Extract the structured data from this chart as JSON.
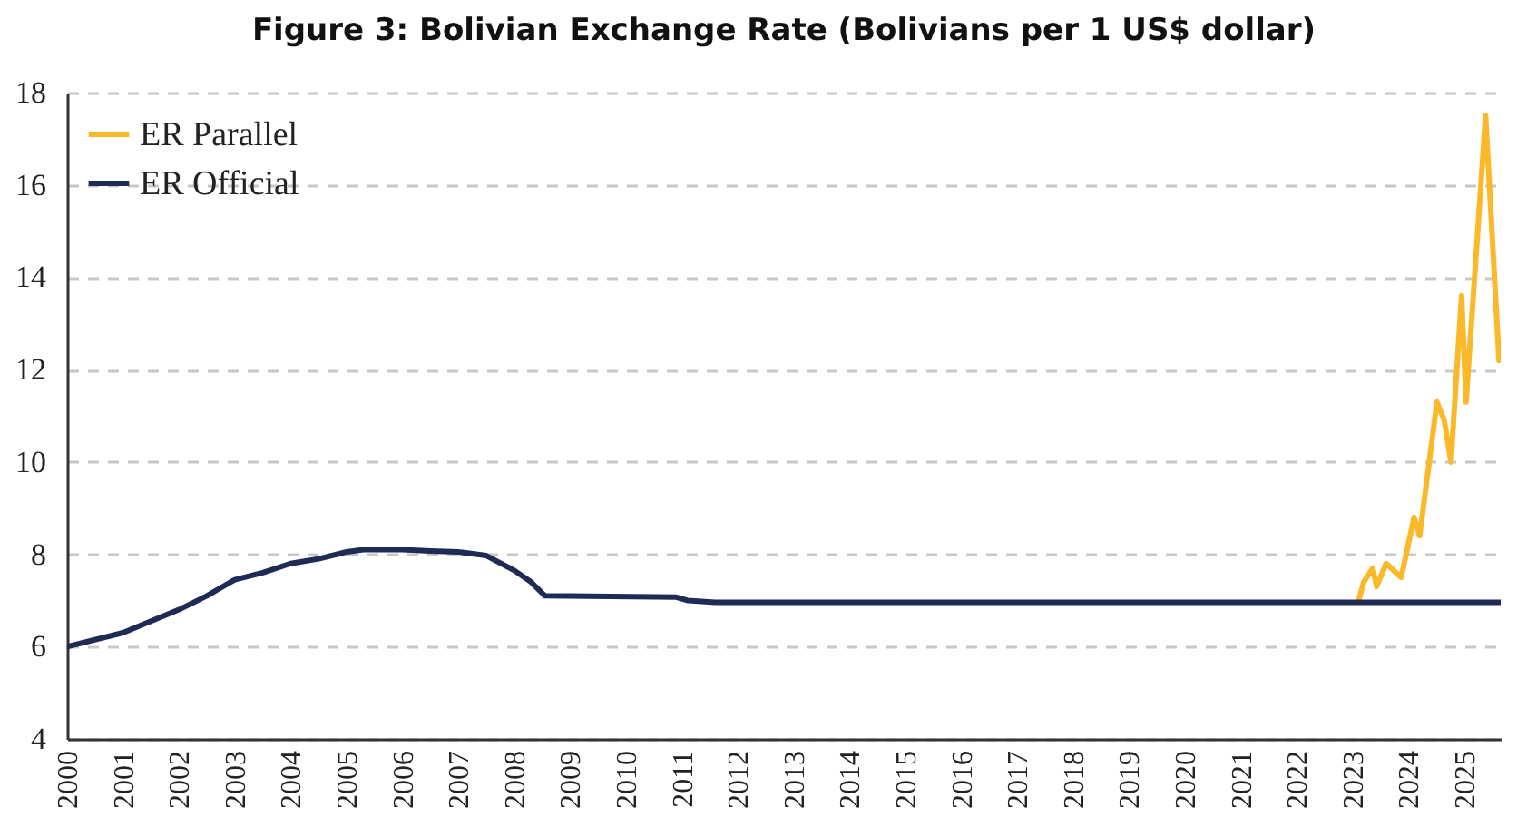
{
  "chart_data": {
    "type": "line",
    "title": "Figure 3: Bolivian Exchange Rate (Bolivians per 1 US$ dollar)",
    "xlim": [
      2000,
      2025.65
    ],
    "xticks": [
      2000,
      2001,
      2002,
      2003,
      2004,
      2005,
      2006,
      2007,
      2008,
      2009,
      2010,
      2011,
      2012,
      2013,
      2014,
      2015,
      2016,
      2017,
      2018,
      2019,
      2020,
      2021,
      2022,
      2023,
      2024,
      2025
    ],
    "ylim": [
      4,
      18
    ],
    "yticks": [
      4,
      6,
      8,
      10,
      12,
      14,
      16,
      18
    ],
    "grid": "y",
    "legend": "top left",
    "marker": "none",
    "line_style": "solid",
    "series": [
      {
        "name": "ER Parallel",
        "color": "#fbb829",
        "x": [
          2023.11,
          2023.2,
          2023.36,
          2023.43,
          2023.6,
          2023.87,
          2024.1,
          2024.2,
          2024.51,
          2024.64,
          2024.76,
          2024.95,
          2025.03,
          2025.38,
          2025.62
        ],
        "values": [
          7.0,
          7.4,
          7.7,
          7.3,
          7.8,
          7.5,
          8.8,
          8.4,
          11.3,
          10.9,
          10.0,
          13.6,
          11.3,
          17.5,
          12.2
        ]
      },
      {
        "name": "ER Official",
        "color": "#1f2a55",
        "x": [
          2000,
          2001,
          2002,
          2002.5,
          2003,
          2003.5,
          2004,
          2004.5,
          2005,
          2005.3,
          2006,
          2006.5,
          2007,
          2007.5,
          2008,
          2008.3,
          2008.55,
          2010.9,
          2011.1,
          2011.6,
          2025.65
        ],
        "values": [
          6.0,
          6.3,
          6.8,
          7.1,
          7.45,
          7.6,
          7.8,
          7.9,
          8.05,
          8.1,
          8.1,
          8.07,
          8.05,
          7.97,
          7.65,
          7.4,
          7.1,
          7.07,
          7.0,
          6.96,
          6.96
        ]
      }
    ]
  }
}
